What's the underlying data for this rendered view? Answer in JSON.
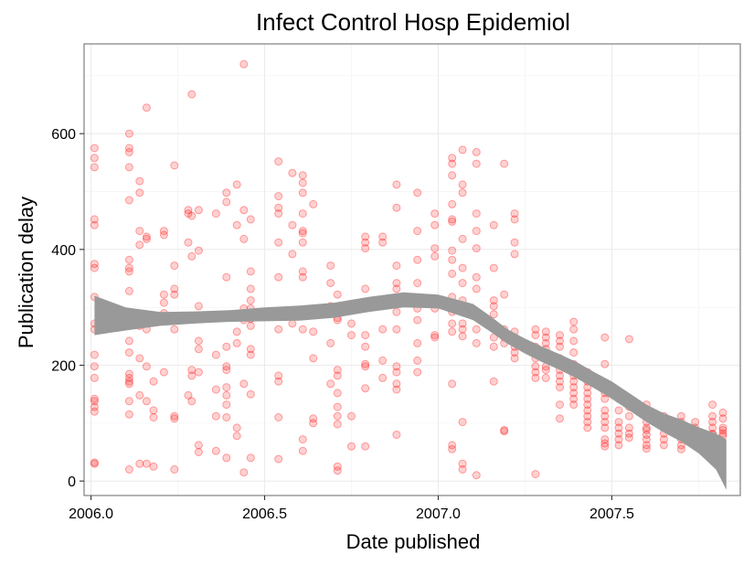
{
  "chart_data": {
    "type": "scatter",
    "title": "Infect Control Hosp Epidemiol",
    "xlabel": "Date published",
    "ylabel": "Publication delay",
    "xlim": [
      1.98,
      3.87
    ],
    "ylim": [
      -25,
      755
    ],
    "x_ticks": [
      {
        "value": 2.0,
        "label": "2006.0"
      },
      {
        "value": 2.5,
        "label": "2006.5"
      },
      {
        "value": 3.0,
        "label": "2007.0"
      },
      {
        "value": 3.5,
        "label": "2007.5"
      }
    ],
    "x_minor": [
      2.25,
      2.75,
      3.25,
      3.75
    ],
    "y_ticks": [
      {
        "value": 0,
        "label": "0"
      },
      {
        "value": 200,
        "label": "200"
      },
      {
        "value": 400,
        "label": "400"
      },
      {
        "value": 600,
        "label": "600"
      }
    ],
    "y_minor": [
      100,
      300,
      500,
      700
    ],
    "grid": true,
    "theme": "bw",
    "colors": {
      "points": "#ff0000",
      "ribbon": "#999999",
      "panel_border": "#7f7f7f"
    },
    "points": [
      [
        2.01,
        575
      ],
      [
        2.01,
        558
      ],
      [
        2.01,
        542
      ],
      [
        2.01,
        452
      ],
      [
        2.01,
        442
      ],
      [
        2.01,
        375
      ],
      [
        2.01,
        368
      ],
      [
        2.01,
        318
      ],
      [
        2.01,
        272
      ],
      [
        2.01,
        262
      ],
      [
        2.01,
        218
      ],
      [
        2.01,
        198
      ],
      [
        2.01,
        178
      ],
      [
        2.01,
        142
      ],
      [
        2.01,
        138
      ],
      [
        2.01,
        128
      ],
      [
        2.01,
        120
      ],
      [
        2.01,
        32
      ],
      [
        2.01,
        30
      ],
      [
        2.11,
        600
      ],
      [
        2.11,
        575
      ],
      [
        2.11,
        568
      ],
      [
        2.11,
        542
      ],
      [
        2.11,
        485
      ],
      [
        2.11,
        382
      ],
      [
        2.11,
        368
      ],
      [
        2.11,
        362
      ],
      [
        2.11,
        328
      ],
      [
        2.11,
        272
      ],
      [
        2.11,
        242
      ],
      [
        2.11,
        222
      ],
      [
        2.11,
        185
      ],
      [
        2.11,
        178
      ],
      [
        2.11,
        172
      ],
      [
        2.11,
        168
      ],
      [
        2.11,
        138
      ],
      [
        2.11,
        115
      ],
      [
        2.11,
        20
      ],
      [
        2.14,
        518
      ],
      [
        2.14,
        498
      ],
      [
        2.14,
        432
      ],
      [
        2.14,
        408
      ],
      [
        2.14,
        268
      ],
      [
        2.14,
        212
      ],
      [
        2.14,
        148
      ],
      [
        2.14,
        30
      ],
      [
        2.16,
        645
      ],
      [
        2.16,
        422
      ],
      [
        2.16,
        418
      ],
      [
        2.16,
        278
      ],
      [
        2.16,
        262
      ],
      [
        2.16,
        198
      ],
      [
        2.16,
        138
      ],
      [
        2.16,
        30
      ],
      [
        2.18,
        282
      ],
      [
        2.18,
        172
      ],
      [
        2.18,
        122
      ],
      [
        2.18,
        110
      ],
      [
        2.18,
        25
      ],
      [
        2.21,
        432
      ],
      [
        2.21,
        425
      ],
      [
        2.21,
        322
      ],
      [
        2.21,
        308
      ],
      [
        2.21,
        290
      ],
      [
        2.21,
        188
      ],
      [
        2.24,
        545
      ],
      [
        2.24,
        372
      ],
      [
        2.24,
        332
      ],
      [
        2.24,
        322
      ],
      [
        2.24,
        262
      ],
      [
        2.24,
        112
      ],
      [
        2.24,
        108
      ],
      [
        2.24,
        20
      ],
      [
        2.28,
        468
      ],
      [
        2.28,
        462
      ],
      [
        2.28,
        412
      ],
      [
        2.28,
        148
      ],
      [
        2.29,
        668
      ],
      [
        2.29,
        458
      ],
      [
        2.29,
        388
      ],
      [
        2.29,
        192
      ],
      [
        2.29,
        182
      ],
      [
        2.29,
        138
      ],
      [
        2.31,
        468
      ],
      [
        2.31,
        398
      ],
      [
        2.31,
        302
      ],
      [
        2.31,
        242
      ],
      [
        2.31,
        228
      ],
      [
        2.31,
        188
      ],
      [
        2.31,
        62
      ],
      [
        2.31,
        50
      ],
      [
        2.36,
        462
      ],
      [
        2.36,
        218
      ],
      [
        2.36,
        158
      ],
      [
        2.36,
        112
      ],
      [
        2.36,
        52
      ],
      [
        2.39,
        498
      ],
      [
        2.39,
        482
      ],
      [
        2.39,
        352
      ],
      [
        2.39,
        232
      ],
      [
        2.39,
        198
      ],
      [
        2.39,
        192
      ],
      [
        2.39,
        162
      ],
      [
        2.39,
        148
      ],
      [
        2.39,
        132
      ],
      [
        2.39,
        110
      ],
      [
        2.39,
        40
      ],
      [
        2.42,
        512
      ],
      [
        2.42,
        442
      ],
      [
        2.42,
        258
      ],
      [
        2.42,
        238
      ],
      [
        2.42,
        92
      ],
      [
        2.42,
        78
      ],
      [
        2.44,
        720
      ],
      [
        2.44,
        468
      ],
      [
        2.44,
        418
      ],
      [
        2.44,
        298
      ],
      [
        2.44,
        278
      ],
      [
        2.44,
        168
      ],
      [
        2.44,
        15
      ],
      [
        2.46,
        452
      ],
      [
        2.46,
        362
      ],
      [
        2.46,
        332
      ],
      [
        2.46,
        312
      ],
      [
        2.46,
        298
      ],
      [
        2.46,
        288
      ],
      [
        2.46,
        280
      ],
      [
        2.46,
        268
      ],
      [
        2.46,
        228
      ],
      [
        2.46,
        218
      ],
      [
        2.46,
        150
      ],
      [
        2.46,
        40
      ],
      [
        2.54,
        552
      ],
      [
        2.54,
        492
      ],
      [
        2.54,
        472
      ],
      [
        2.54,
        462
      ],
      [
        2.54,
        412
      ],
      [
        2.54,
        352
      ],
      [
        2.54,
        292
      ],
      [
        2.54,
        262
      ],
      [
        2.54,
        182
      ],
      [
        2.54,
        172
      ],
      [
        2.54,
        110
      ],
      [
        2.54,
        38
      ],
      [
        2.58,
        532
      ],
      [
        2.58,
        442
      ],
      [
        2.58,
        392
      ],
      [
        2.58,
        272
      ],
      [
        2.61,
        528
      ],
      [
        2.61,
        515
      ],
      [
        2.61,
        498
      ],
      [
        2.61,
        462
      ],
      [
        2.61,
        432
      ],
      [
        2.61,
        428
      ],
      [
        2.61,
        412
      ],
      [
        2.61,
        362
      ],
      [
        2.61,
        352
      ],
      [
        2.61,
        262
      ],
      [
        2.61,
        72
      ],
      [
        2.61,
        52
      ],
      [
        2.64,
        478
      ],
      [
        2.64,
        258
      ],
      [
        2.64,
        212
      ],
      [
        2.64,
        108
      ],
      [
        2.64,
        100
      ],
      [
        2.69,
        372
      ],
      [
        2.69,
        342
      ],
      [
        2.69,
        302
      ],
      [
        2.69,
        238
      ],
      [
        2.69,
        168
      ],
      [
        2.71,
        322
      ],
      [
        2.71,
        282
      ],
      [
        2.71,
        278
      ],
      [
        2.71,
        192
      ],
      [
        2.71,
        182
      ],
      [
        2.71,
        152
      ],
      [
        2.71,
        128
      ],
      [
        2.71,
        112
      ],
      [
        2.71,
        98
      ],
      [
        2.71,
        18
      ],
      [
        2.71,
        25
      ],
      [
        2.75,
        272
      ],
      [
        2.75,
        252
      ],
      [
        2.75,
        112
      ],
      [
        2.75,
        60
      ],
      [
        2.79,
        422
      ],
      [
        2.79,
        412
      ],
      [
        2.79,
        402
      ],
      [
        2.79,
        332
      ],
      [
        2.79,
        252
      ],
      [
        2.79,
        232
      ],
      [
        2.79,
        202
      ],
      [
        2.79,
        198
      ],
      [
        2.79,
        160
      ],
      [
        2.79,
        60
      ],
      [
        2.84,
        422
      ],
      [
        2.84,
        412
      ],
      [
        2.84,
        262
      ],
      [
        2.84,
        208
      ],
      [
        2.84,
        178
      ],
      [
        2.88,
        512
      ],
      [
        2.88,
        472
      ],
      [
        2.88,
        372
      ],
      [
        2.88,
        342
      ],
      [
        2.88,
        332
      ],
      [
        2.88,
        312
      ],
      [
        2.88,
        292
      ],
      [
        2.88,
        262
      ],
      [
        2.88,
        198
      ],
      [
        2.88,
        188
      ],
      [
        2.88,
        168
      ],
      [
        2.88,
        158
      ],
      [
        2.88,
        80
      ],
      [
        2.94,
        498
      ],
      [
        2.94,
        432
      ],
      [
        2.94,
        382
      ],
      [
        2.94,
        342
      ],
      [
        2.94,
        298
      ],
      [
        2.94,
        278
      ],
      [
        2.94,
        238
      ],
      [
        2.94,
        208
      ],
      [
        2.94,
        188
      ],
      [
        2.99,
        462
      ],
      [
        2.99,
        442
      ],
      [
        2.99,
        402
      ],
      [
        2.99,
        388
      ],
      [
        2.99,
        312
      ],
      [
        2.99,
        298
      ],
      [
        2.99,
        252
      ],
      [
        2.99,
        248
      ],
      [
        3.04,
        558
      ],
      [
        3.04,
        548
      ],
      [
        3.04,
        528
      ],
      [
        3.04,
        478
      ],
      [
        3.04,
        452
      ],
      [
        3.04,
        448
      ],
      [
        3.04,
        398
      ],
      [
        3.04,
        382
      ],
      [
        3.04,
        358
      ],
      [
        3.04,
        318
      ],
      [
        3.04,
        292
      ],
      [
        3.04,
        272
      ],
      [
        3.04,
        258
      ],
      [
        3.04,
        168
      ],
      [
        3.04,
        62
      ],
      [
        3.04,
        55
      ],
      [
        3.07,
        572
      ],
      [
        3.07,
        512
      ],
      [
        3.07,
        498
      ],
      [
        3.07,
        418
      ],
      [
        3.07,
        368
      ],
      [
        3.07,
        342
      ],
      [
        3.07,
        312
      ],
      [
        3.07,
        302
      ],
      [
        3.07,
        272
      ],
      [
        3.07,
        262
      ],
      [
        3.07,
        250
      ],
      [
        3.07,
        102
      ],
      [
        3.07,
        30
      ],
      [
        3.07,
        20
      ],
      [
        3.11,
        568
      ],
      [
        3.11,
        548
      ],
      [
        3.11,
        462
      ],
      [
        3.11,
        432
      ],
      [
        3.11,
        402
      ],
      [
        3.11,
        352
      ],
      [
        3.11,
        332
      ],
      [
        3.11,
        262
      ],
      [
        3.11,
        238
      ],
      [
        3.11,
        10
      ],
      [
        3.16,
        442
      ],
      [
        3.16,
        368
      ],
      [
        3.16,
        312
      ],
      [
        3.16,
        302
      ],
      [
        3.16,
        288
      ],
      [
        3.16,
        248
      ],
      [
        3.16,
        232
      ],
      [
        3.16,
        172
      ],
      [
        3.19,
        548
      ],
      [
        3.19,
        322
      ],
      [
        3.19,
        262
      ],
      [
        3.19,
        248
      ],
      [
        3.19,
        238
      ],
      [
        3.19,
        88
      ],
      [
        3.19,
        86
      ],
      [
        3.22,
        462
      ],
      [
        3.22,
        452
      ],
      [
        3.22,
        412
      ],
      [
        3.22,
        392
      ],
      [
        3.22,
        258
      ],
      [
        3.22,
        248
      ],
      [
        3.22,
        232
      ],
      [
        3.22,
        222
      ],
      [
        3.22,
        212
      ],
      [
        3.28,
        262
      ],
      [
        3.28,
        252
      ],
      [
        3.28,
        232
      ],
      [
        3.28,
        222
      ],
      [
        3.28,
        212
      ],
      [
        3.28,
        198
      ],
      [
        3.28,
        188
      ],
      [
        3.28,
        178
      ],
      [
        3.28,
        12
      ],
      [
        3.31,
        258
      ],
      [
        3.31,
        248
      ],
      [
        3.31,
        238
      ],
      [
        3.31,
        228
      ],
      [
        3.31,
        212
      ],
      [
        3.31,
        198
      ],
      [
        3.31,
        192
      ],
      [
        3.31,
        178
      ],
      [
        3.35,
        252
      ],
      [
        3.35,
        242
      ],
      [
        3.35,
        232
      ],
      [
        3.35,
        212
      ],
      [
        3.35,
        202
      ],
      [
        3.35,
        192
      ],
      [
        3.35,
        182
      ],
      [
        3.35,
        172
      ],
      [
        3.35,
        162
      ],
      [
        3.35,
        132
      ],
      [
        3.35,
        108
      ],
      [
        3.39,
        275
      ],
      [
        3.39,
        262
      ],
      [
        3.39,
        242
      ],
      [
        3.39,
        222
      ],
      [
        3.39,
        202
      ],
      [
        3.39,
        192
      ],
      [
        3.39,
        182
      ],
      [
        3.39,
        172
      ],
      [
        3.39,
        162
      ],
      [
        3.39,
        152
      ],
      [
        3.39,
        142
      ],
      [
        3.39,
        132
      ],
      [
        3.43,
        188
      ],
      [
        3.43,
        172
      ],
      [
        3.43,
        162
      ],
      [
        3.43,
        152
      ],
      [
        3.43,
        142
      ],
      [
        3.43,
        132
      ],
      [
        3.43,
        122
      ],
      [
        3.43,
        112
      ],
      [
        3.43,
        102
      ],
      [
        3.43,
        92
      ],
      [
        3.48,
        248
      ],
      [
        3.48,
        202
      ],
      [
        3.48,
        168
      ],
      [
        3.48,
        152
      ],
      [
        3.48,
        142
      ],
      [
        3.48,
        122
      ],
      [
        3.48,
        112
      ],
      [
        3.48,
        102
      ],
      [
        3.48,
        92
      ],
      [
        3.48,
        72
      ],
      [
        3.48,
        65
      ],
      [
        3.48,
        60
      ],
      [
        3.52,
        142
      ],
      [
        3.52,
        122
      ],
      [
        3.52,
        102
      ],
      [
        3.52,
        92
      ],
      [
        3.52,
        82
      ],
      [
        3.52,
        72
      ],
      [
        3.52,
        62
      ],
      [
        3.55,
        245
      ],
      [
        3.55,
        142
      ],
      [
        3.55,
        128
      ],
      [
        3.55,
        112
      ],
      [
        3.55,
        92
      ],
      [
        3.55,
        82
      ],
      [
        3.55,
        75
      ],
      [
        3.6,
        132
      ],
      [
        3.6,
        112
      ],
      [
        3.6,
        102
      ],
      [
        3.6,
        92
      ],
      [
        3.6,
        88
      ],
      [
        3.6,
        80
      ],
      [
        3.6,
        72
      ],
      [
        3.6,
        62
      ],
      [
        3.6,
        56
      ],
      [
        3.65,
        112
      ],
      [
        3.65,
        102
      ],
      [
        3.65,
        92
      ],
      [
        3.65,
        82
      ],
      [
        3.65,
        72
      ],
      [
        3.65,
        62
      ],
      [
        3.7,
        112
      ],
      [
        3.7,
        102
      ],
      [
        3.7,
        92
      ],
      [
        3.7,
        82
      ],
      [
        3.7,
        72
      ],
      [
        3.7,
        62
      ],
      [
        3.7,
        55
      ],
      [
        3.74,
        102
      ],
      [
        3.74,
        92
      ],
      [
        3.74,
        82
      ],
      [
        3.74,
        72
      ],
      [
        3.74,
        62
      ],
      [
        3.79,
        132
      ],
      [
        3.79,
        112
      ],
      [
        3.79,
        102
      ],
      [
        3.79,
        92
      ],
      [
        3.79,
        82
      ],
      [
        3.79,
        80
      ],
      [
        3.82,
        118
      ],
      [
        3.82,
        108
      ],
      [
        3.82,
        92
      ],
      [
        3.82,
        88
      ],
      [
        3.82,
        82
      ],
      [
        3.82,
        78
      ]
    ],
    "smooth": {
      "x": [
        2.01,
        2.1,
        2.2,
        2.3,
        2.4,
        2.5,
        2.6,
        2.7,
        2.8,
        2.9,
        3.0,
        3.1,
        3.15,
        3.2,
        3.25,
        3.3,
        3.35,
        3.4,
        3.45,
        3.5,
        3.55,
        3.6,
        3.65,
        3.7,
        3.75,
        3.8,
        3.83
      ],
      "lower": [
        252,
        260,
        268,
        272,
        275,
        276,
        277,
        282,
        292,
        300,
        298,
        278,
        258,
        237,
        220,
        205,
        192,
        177,
        160,
        142,
        122,
        102,
        84,
        68,
        48,
        20,
        -15
      ],
      "upper": [
        320,
        300,
        292,
        293,
        295,
        300,
        303,
        308,
        318,
        326,
        322,
        306,
        285,
        262,
        246,
        232,
        219,
        205,
        188,
        172,
        152,
        132,
        117,
        106,
        93,
        82,
        72
      ]
    }
  }
}
